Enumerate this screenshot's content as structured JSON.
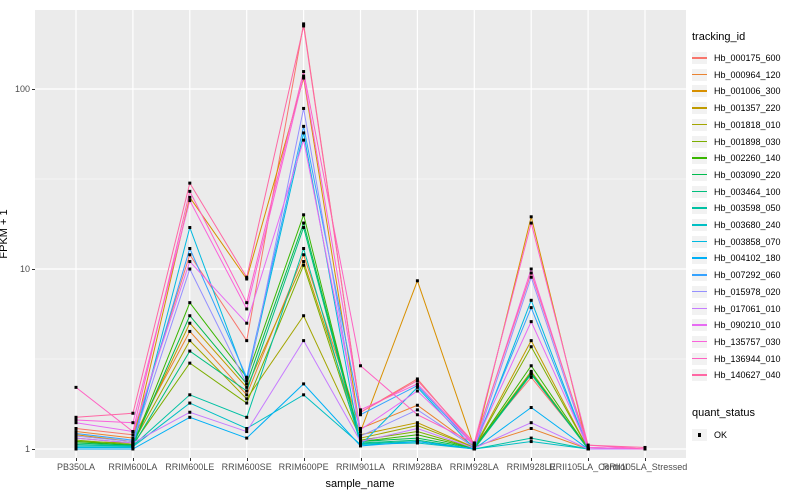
{
  "y_axis": {
    "title": "FPKM + 1",
    "ticks": [
      {
        "label": "100",
        "value": 100
      },
      {
        "label": "10",
        "value": 10
      },
      {
        "label": "1",
        "value": 1
      }
    ]
  },
  "x_axis": {
    "title": "sample_name"
  },
  "legend": {
    "tracking_title": "tracking_id",
    "quant_title": "quant_status",
    "quant_items": [
      {
        "label": "OK"
      }
    ]
  },
  "chart_data": {
    "type": "line",
    "scale": "log10",
    "marker": "black-square",
    "grid": {
      "major": [
        1,
        10,
        100
      ],
      "minor": [
        3.1623,
        31.623
      ]
    },
    "ylim": [
      1,
      300
    ],
    "xlabel": "sample_name",
    "ylabel": "FPKM + 1",
    "legend_position": "right",
    "categories": [
      "PB350LA",
      "RRIM600LA",
      "RRIM600LE",
      "RRIM600SE",
      "RRIM600PE",
      "RRIM901LA",
      "RRIM928BA",
      "RRIM928LA",
      "RRIM928LE",
      "RRII105LA_Control",
      "RRII105LA_Stressed"
    ],
    "series": [
      {
        "name": "Hb_000175_600",
        "color": "#F8766D",
        "values": [
          1.3,
          1.2,
          12.0,
          4.0,
          230.0,
          1.6,
          2.45,
          1.05,
          2.5,
          1.02,
          1.0
        ]
      },
      {
        "name": "Hb_000964_120",
        "color": "#EA8331",
        "values": [
          1.25,
          1.15,
          4.5,
          2.0,
          12.0,
          1.3,
          1.75,
          1.03,
          1.3,
          1.0,
          1.0
        ]
      },
      {
        "name": "Hb_001006_300",
        "color": "#D89000",
        "values": [
          1.2,
          1.1,
          25.0,
          8.8,
          115.0,
          1.25,
          8.6,
          1.02,
          19.5,
          1.0,
          1.0
        ]
      },
      {
        "name": "Hb_001357_220",
        "color": "#C09B00",
        "values": [
          1.15,
          1.08,
          5.0,
          2.2,
          11.0,
          1.2,
          1.4,
          1.02,
          4.0,
          1.0,
          1.0
        ]
      },
      {
        "name": "Hb_001818_010",
        "color": "#A3A500",
        "values": [
          1.1,
          1.08,
          4.0,
          1.9,
          5.5,
          1.15,
          1.35,
          1.02,
          2.7,
          1.0,
          1.0
        ]
      },
      {
        "name": "Hb_001898_030",
        "color": "#7CAE00",
        "values": [
          1.12,
          1.06,
          3.0,
          1.8,
          10.5,
          1.12,
          1.25,
          1.01,
          3.7,
          1.0,
          1.0
        ]
      },
      {
        "name": "Hb_002260_140",
        "color": "#39B600",
        "values": [
          1.1,
          1.05,
          6.5,
          2.5,
          20.0,
          1.1,
          1.2,
          1.01,
          2.9,
          1.0,
          1.0
        ]
      },
      {
        "name": "Hb_003090_220",
        "color": "#00BB4E",
        "values": [
          1.08,
          1.05,
          5.5,
          2.3,
          18.0,
          1.1,
          1.15,
          1.01,
          2.65,
          1.0,
          1.0
        ]
      },
      {
        "name": "Hb_003464_100",
        "color": "#00BF7D",
        "values": [
          1.06,
          1.04,
          3.5,
          2.1,
          17.0,
          1.08,
          1.12,
          1.0,
          2.6,
          1.0,
          1.0
        ]
      },
      {
        "name": "Hb_003598_050",
        "color": "#00C1A3",
        "values": [
          1.05,
          1.04,
          2.0,
          1.5,
          13.0,
          1.07,
          1.1,
          1.0,
          1.15,
          1.0,
          1.0
        ]
      },
      {
        "name": "Hb_003680_240",
        "color": "#00BFC4",
        "values": [
          1.03,
          1.03,
          1.8,
          1.3,
          2.0,
          1.06,
          1.08,
          1.0,
          1.1,
          1.0,
          1.0
        ]
      },
      {
        "name": "Hb_003858_070",
        "color": "#00BAE0",
        "values": [
          1.02,
          1.02,
          17.0,
          2.4,
          57.0,
          1.05,
          2.2,
          1.0,
          6.7,
          1.0,
          1.0
        ]
      },
      {
        "name": "Hb_004102_180",
        "color": "#00B0F6",
        "values": [
          1.0,
          1.0,
          1.5,
          1.15,
          2.3,
          1.04,
          1.1,
          1.0,
          1.7,
          1.0,
          1.0
        ]
      },
      {
        "name": "Hb_007292_060",
        "color": "#35A2FF",
        "values": [
          1.22,
          1.12,
          13.0,
          2.5,
          62.0,
          1.55,
          2.25,
          1.04,
          6.1,
          1.0,
          1.0
        ]
      },
      {
        "name": "Hb_015978_020",
        "color": "#9590FF",
        "values": [
          1.18,
          1.1,
          10.0,
          2.3,
          78.0,
          1.18,
          1.65,
          1.02,
          9.0,
          1.0,
          1.0
        ]
      },
      {
        "name": "Hb_017061_010",
        "color": "#C77CFF",
        "values": [
          1.15,
          1.08,
          1.6,
          1.25,
          4.0,
          1.1,
          1.3,
          1.01,
          1.4,
          1.0,
          1.0
        ]
      },
      {
        "name": "Hb_090210_010",
        "color": "#E76BF3",
        "values": [
          1.4,
          1.25,
          11.0,
          5.0,
          52.0,
          1.28,
          2.1,
          1.05,
          5.1,
          1.02,
          1.0
        ]
      },
      {
        "name": "Hb_135757_030",
        "color": "#FA62DB",
        "values": [
          1.45,
          1.4,
          24.0,
          6.0,
          118.0,
          1.65,
          2.3,
          1.06,
          10.0,
          1.02,
          1.0
        ]
      },
      {
        "name": "Hb_136944_010",
        "color": "#FF61C3",
        "values": [
          2.2,
          1.25,
          27.0,
          6.5,
          125.0,
          2.9,
          1.55,
          1.08,
          18.0,
          1.05,
          1.0
        ]
      },
      {
        "name": "Hb_140627_040",
        "color": "#FF67A4",
        "values": [
          1.5,
          1.58,
          30.0,
          9.0,
          224.0,
          1.6,
          2.4,
          1.08,
          9.5,
          1.05,
          1.02
        ]
      }
    ]
  }
}
